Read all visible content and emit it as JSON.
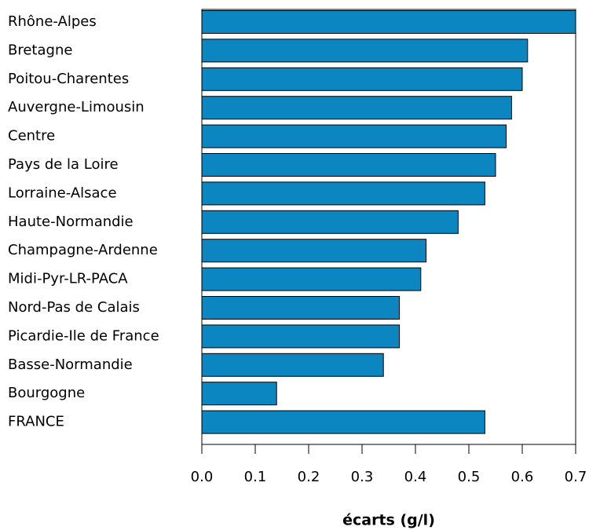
{
  "chart_data": {
    "type": "bar",
    "orientation": "horizontal",
    "categories": [
      "Rhône-Alpes",
      "Bretagne",
      "Poitou-Charentes",
      "Auvergne-Limousin",
      "Centre",
      "Pays de la Loire",
      "Lorraine-Alsace",
      "Haute-Normandie",
      "Champagne-Ardenne",
      "Midi-Pyr-LR-PACA",
      "Nord-Pas de Calais",
      "Picardie-Ile de France",
      "Basse-Normandie",
      "Bourgogne",
      "FRANCE"
    ],
    "values": [
      0.7,
      0.61,
      0.6,
      0.58,
      0.57,
      0.55,
      0.53,
      0.48,
      0.42,
      0.41,
      0.37,
      0.37,
      0.34,
      0.14,
      0.53
    ],
    "color": "#0b86c1",
    "xlim": [
      0,
      0.7
    ],
    "xticks": [
      {
        "value": 0,
        "label": "0.0"
      },
      0.1,
      0.2,
      0.3,
      0.4,
      0.5,
      0.6,
      0.7
    ],
    "xlabel": "écarts (g/l)"
  }
}
